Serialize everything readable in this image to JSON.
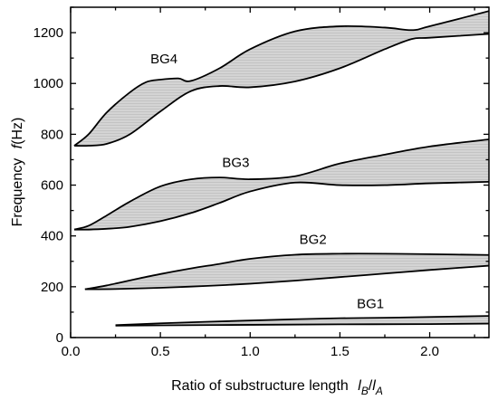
{
  "chart_data": {
    "type": "area",
    "title": "",
    "xlabel": {
      "text": "Ratio of substructure length",
      "var_l1": "l",
      "sub1": "B",
      "slash": "/",
      "var_l2": "l",
      "sub2": "A"
    },
    "ylabel": {
      "text": "Frequency",
      "var": "f",
      "unit": "(Hz)"
    },
    "xlim": [
      0.0,
      2.33
    ],
    "ylim": [
      0,
      1300
    ],
    "xticks": [
      0.0,
      0.5,
      1.0,
      1.5,
      2.0
    ],
    "xtick_labels": [
      "0.0",
      "0.5",
      "1.0",
      "1.5",
      "2.0"
    ],
    "yticks": [
      0,
      200,
      400,
      600,
      800,
      1000,
      1200
    ],
    "ytick_labels": [
      "0",
      "200",
      "400",
      "600",
      "800",
      "1000",
      "1200"
    ],
    "grid": false,
    "colors": {
      "band_fill": "#d4d4d4",
      "edge": "#000000"
    },
    "series": [
      {
        "name": "BG1",
        "label_at": [
          1.67,
          115
        ],
        "lower": [
          [
            0.25,
            47
          ],
          [
            0.5,
            48
          ],
          [
            1.0,
            50
          ],
          [
            1.5,
            52
          ],
          [
            2.0,
            53
          ],
          [
            2.33,
            55
          ]
        ],
        "upper": [
          [
            0.25,
            49
          ],
          [
            0.5,
            56
          ],
          [
            0.75,
            62
          ],
          [
            1.0,
            67
          ],
          [
            1.25,
            72
          ],
          [
            1.5,
            76
          ],
          [
            1.75,
            78
          ],
          [
            2.0,
            81
          ],
          [
            2.33,
            85
          ]
        ]
      },
      {
        "name": "BG2",
        "label_at": [
          1.35,
          368
        ],
        "lower": [
          [
            0.08,
            190
          ],
          [
            0.25,
            191
          ],
          [
            0.5,
            196
          ],
          [
            0.75,
            203
          ],
          [
            1.0,
            212
          ],
          [
            1.25,
            224
          ],
          [
            1.5,
            238
          ],
          [
            1.75,
            252
          ],
          [
            2.0,
            266
          ],
          [
            2.33,
            283
          ]
        ],
        "upper": [
          [
            0.08,
            190
          ],
          [
            0.2,
            205
          ],
          [
            0.35,
            228
          ],
          [
            0.5,
            250
          ],
          [
            0.67,
            272
          ],
          [
            0.83,
            290
          ],
          [
            1.0,
            310
          ],
          [
            1.25,
            326
          ],
          [
            1.5,
            330
          ],
          [
            1.75,
            330
          ],
          [
            2.0,
            328
          ],
          [
            2.33,
            325
          ]
        ]
      },
      {
        "name": "BG3",
        "label_at": [
          0.92,
          672
        ],
        "lower": [
          [
            0.02,
            425
          ],
          [
            0.1,
            425
          ],
          [
            0.2,
            428
          ],
          [
            0.33,
            436
          ],
          [
            0.5,
            458
          ],
          [
            0.67,
            490
          ],
          [
            0.83,
            530
          ],
          [
            1.0,
            575
          ],
          [
            1.25,
            610
          ],
          [
            1.5,
            600
          ],
          [
            1.75,
            600
          ],
          [
            2.0,
            607
          ],
          [
            2.33,
            613
          ]
        ],
        "upper": [
          [
            0.02,
            425
          ],
          [
            0.1,
            440
          ],
          [
            0.2,
            480
          ],
          [
            0.33,
            535
          ],
          [
            0.5,
            595
          ],
          [
            0.67,
            623
          ],
          [
            0.83,
            630
          ],
          [
            1.0,
            623
          ],
          [
            1.25,
            635
          ],
          [
            1.5,
            685
          ],
          [
            1.75,
            720
          ],
          [
            2.0,
            752
          ],
          [
            2.33,
            780
          ]
        ]
      },
      {
        "name": "BG4",
        "label_at": [
          0.52,
          1080
        ],
        "lower": [
          [
            0.02,
            755
          ],
          [
            0.1,
            755
          ],
          [
            0.2,
            762
          ],
          [
            0.33,
            800
          ],
          [
            0.5,
            890
          ],
          [
            0.67,
            970
          ],
          [
            0.83,
            990
          ],
          [
            1.0,
            985
          ],
          [
            1.25,
            1008
          ],
          [
            1.5,
            1060
          ],
          [
            1.75,
            1135
          ],
          [
            1.9,
            1175
          ],
          [
            2.0,
            1180
          ],
          [
            2.33,
            1195
          ]
        ],
        "upper": [
          [
            0.02,
            755
          ],
          [
            0.1,
            800
          ],
          [
            0.2,
            885
          ],
          [
            0.33,
            965
          ],
          [
            0.42,
            1005
          ],
          [
            0.5,
            1015
          ],
          [
            0.6,
            1020
          ],
          [
            0.67,
            1010
          ],
          [
            0.83,
            1060
          ],
          [
            1.0,
            1135
          ],
          [
            1.25,
            1205
          ],
          [
            1.5,
            1225
          ],
          [
            1.75,
            1220
          ],
          [
            1.9,
            1210
          ],
          [
            2.0,
            1225
          ],
          [
            2.33,
            1285
          ]
        ]
      }
    ]
  }
}
